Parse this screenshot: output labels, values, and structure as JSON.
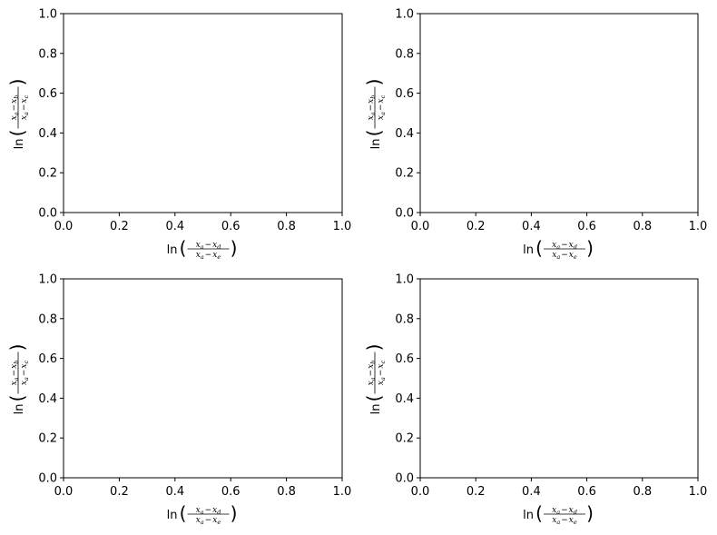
{
  "chart_data": [
    {
      "type": "line",
      "title": "",
      "xlabel": {
        "fn": "ln",
        "num": [
          "x",
          "a",
          "−",
          "x",
          "d"
        ],
        "den": [
          "x",
          "a",
          "−",
          "x",
          "e"
        ]
      },
      "ylabel": {
        "fn": "ln",
        "num": [
          "x",
          "a",
          "−",
          "x",
          "b"
        ],
        "den": [
          "x",
          "a",
          "−",
          "x",
          "c"
        ]
      },
      "xlim": [
        0,
        1
      ],
      "ylim": [
        0,
        1
      ],
      "xticks": [
        "0.0",
        "0.2",
        "0.4",
        "0.6",
        "0.8",
        "1.0"
      ],
      "yticks": [
        "0.0",
        "0.2",
        "0.4",
        "0.6",
        "0.8",
        "1.0"
      ],
      "series": [],
      "grid": false
    },
    {
      "type": "line",
      "title": "",
      "xlabel": {
        "fn": "ln",
        "num": [
          "x",
          "a",
          "−",
          "x",
          "d"
        ],
        "den": [
          "x",
          "a",
          "−",
          "x",
          "e"
        ]
      },
      "ylabel": {
        "fn": "ln",
        "num": [
          "x",
          "a",
          "−",
          "x",
          "b"
        ],
        "den": [
          "x",
          "a",
          "−",
          "x",
          "c"
        ]
      },
      "xlim": [
        0,
        1
      ],
      "ylim": [
        0,
        1
      ],
      "xticks": [
        "0.0",
        "0.2",
        "0.4",
        "0.6",
        "0.8",
        "1.0"
      ],
      "yticks": [
        "0.0",
        "0.2",
        "0.4",
        "0.6",
        "0.8",
        "1.0"
      ],
      "series": [],
      "grid": false
    },
    {
      "type": "line",
      "title": "",
      "xlabel": {
        "fn": "ln",
        "num": [
          "x",
          "a",
          "−",
          "x",
          "d"
        ],
        "den": [
          "x",
          "a",
          "−",
          "x",
          "e"
        ]
      },
      "ylabel": {
        "fn": "ln",
        "num": [
          "x",
          "a",
          "−",
          "x",
          "b"
        ],
        "den": [
          "x",
          "a",
          "−",
          "x",
          "c"
        ]
      },
      "xlim": [
        0,
        1
      ],
      "ylim": [
        0,
        1
      ],
      "xticks": [
        "0.0",
        "0.2",
        "0.4",
        "0.6",
        "0.8",
        "1.0"
      ],
      "yticks": [
        "0.0",
        "0.2",
        "0.4",
        "0.6",
        "0.8",
        "1.0"
      ],
      "series": [],
      "grid": false
    },
    {
      "type": "line",
      "title": "",
      "xlabel": {
        "fn": "ln",
        "num": [
          "x",
          "a",
          "−",
          "x",
          "d"
        ],
        "den": [
          "x",
          "a",
          "−",
          "x",
          "e"
        ]
      },
      "ylabel": {
        "fn": "ln",
        "num": [
          "x",
          "a",
          "−",
          "x",
          "b"
        ],
        "den": [
          "x",
          "a",
          "−",
          "x",
          "c"
        ]
      },
      "xlim": [
        0,
        1
      ],
      "ylim": [
        0,
        1
      ],
      "xticks": [
        "0.0",
        "0.2",
        "0.4",
        "0.6",
        "0.8",
        "1.0"
      ],
      "yticks": [
        "0.0",
        "0.2",
        "0.4",
        "0.6",
        "0.8",
        "1.0"
      ],
      "series": [],
      "grid": false
    }
  ]
}
